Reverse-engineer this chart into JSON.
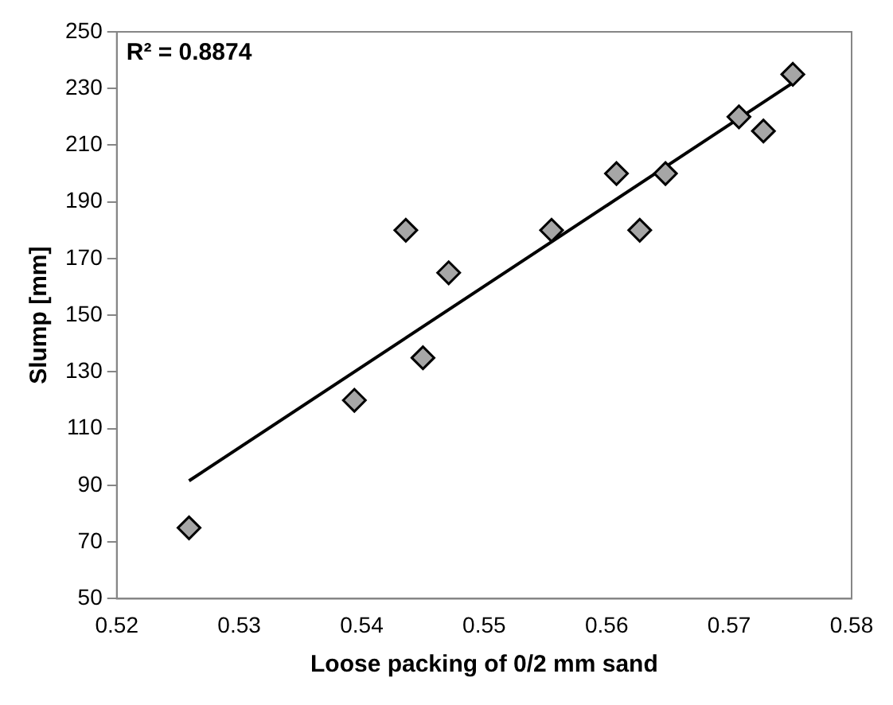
{
  "chart_data": {
    "type": "scatter",
    "xlabel": "Loose packing of 0/2 mm sand",
    "ylabel": "Slump [mm]",
    "annotations": [
      "R² = 0.8874"
    ],
    "xlim": [
      0.52,
      0.58
    ],
    "xticks": [
      0.52,
      0.53,
      0.54,
      0.55,
      0.56,
      0.57,
      0.58
    ],
    "ylim": [
      50,
      250
    ],
    "yticks": [
      50,
      70,
      90,
      110,
      130,
      150,
      170,
      190,
      210,
      230,
      250
    ],
    "grid": false,
    "legend": false,
    "series": [
      {
        "marker": "diamond",
        "color": "#a6a6a6",
        "x": [
          0.5259,
          0.5394,
          0.5436,
          0.545,
          0.5471,
          0.5555,
          0.5608,
          0.5627,
          0.5648,
          0.5708,
          0.5728,
          0.5752
        ],
        "values": [
          75,
          120,
          180,
          135,
          165,
          180,
          200,
          180,
          200,
          220,
          215,
          235
        ]
      },
      {
        "type": "line",
        "marker": "none",
        "color": "#000000",
        "line_style": "solid",
        "x": [
          0.5259,
          0.5751
        ],
        "values": [
          91.6,
          231.7
        ]
      }
    ]
  }
}
